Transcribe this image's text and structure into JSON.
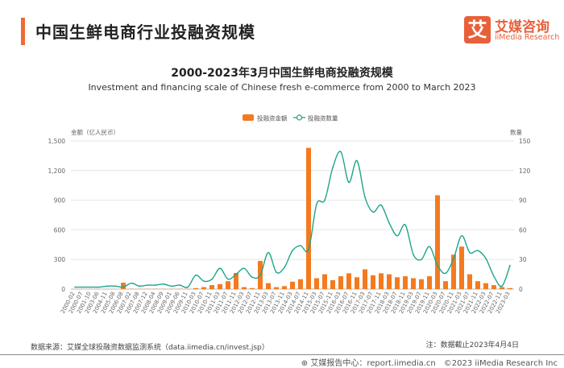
{
  "header": {
    "title": "中国生鲜电商行业投融资规模",
    "logo_mark": "艾",
    "logo_cn": "艾媒咨询",
    "logo_en": "iiMedia Research",
    "accent_color": "#f06a35"
  },
  "chart_data": {
    "type": "bar+line",
    "title": "2000-2023年3月中国生鲜电商投融资规模",
    "subtitle": "Investment and financing scale of Chinese fresh e-commerce from 2000 to March 2023",
    "ylabel_left": "金额（亿人民币）",
    "ylabel_right": "数量",
    "ylim_left": [
      0,
      1500
    ],
    "yticks_left": [
      "0",
      "300",
      "600",
      "900",
      "1,200",
      "1,500"
    ],
    "ylim_right": [
      0,
      150
    ],
    "yticks_right": [
      "0",
      "30",
      "60",
      "90",
      "120",
      "150"
    ],
    "grid": true,
    "legend_position": "top-center",
    "categories": [
      "2000-02",
      "2000-07",
      "2001-10",
      "2003-06",
      "2004-11",
      "2005-08",
      "2006-08",
      "2007-02",
      "2007-08",
      "2007-12",
      "2008-04",
      "2008-09",
      "2009-01",
      "2009-06",
      "2009-11",
      "2010-03",
      "2010-07",
      "2010-11",
      "2011-03",
      "2011-07",
      "2011-11",
      "2012-03",
      "2012-07",
      "2012-11",
      "2013-03",
      "2013-07",
      "2013-11",
      "2014-03",
      "2014-07",
      "2014-11",
      "2015-03",
      "2015-07",
      "2015-11",
      "2016-03",
      "2016-07",
      "2016-11",
      "2017-03",
      "2017-07",
      "2017-11",
      "2018-03",
      "2018-07",
      "2018-11",
      "2019-03",
      "2019-07",
      "2019-11",
      "2020-03",
      "2020-07",
      "2020-11",
      "2021-03",
      "2021-07",
      "2021-11",
      "2022-03",
      "2022-07",
      "2022-11",
      "2023-03"
    ],
    "series": [
      {
        "name": "投融资金额",
        "type": "bar",
        "axis": "left",
        "color": "#f47a20",
        "values": [
          0,
          0,
          0,
          0,
          0,
          0,
          65,
          3,
          2,
          2,
          3,
          2,
          2,
          3,
          2,
          10,
          20,
          40,
          50,
          80,
          163,
          20,
          10,
          285,
          60,
          20,
          30,
          75,
          100,
          1430,
          110,
          150,
          90,
          130,
          160,
          120,
          200,
          140,
          160,
          150,
          120,
          130,
          110,
          100,
          130,
          950,
          80,
          348,
          430,
          150,
          80,
          60,
          40,
          20,
          10
        ]
      },
      {
        "name": "投融资数量",
        "type": "line",
        "axis": "right",
        "color": "#1fa58a",
        "values": [
          2,
          2,
          2,
          2,
          3,
          3,
          2,
          6,
          3,
          4,
          4,
          5,
          3,
          4,
          2,
          14,
          8,
          10,
          21,
          10,
          15,
          21,
          12,
          14,
          37,
          17,
          22,
          39,
          44,
          40,
          86,
          90,
          123,
          139,
          108,
          130,
          93,
          78,
          85,
          67,
          54,
          65,
          35,
          30,
          43,
          24,
          16,
          31,
          54,
          37,
          39,
          31,
          13,
          3,
          24
        ]
      }
    ]
  },
  "footer": {
    "source": "数据来源：艾媒全球投融资数据监测系统（data.iimedia.cn/invest.jsp）",
    "note": "注：数据截止2023年4月4日",
    "copyright": "艾媒报告中心：report.iimedia.cn　©2023  iiMedia Research  Inc"
  }
}
